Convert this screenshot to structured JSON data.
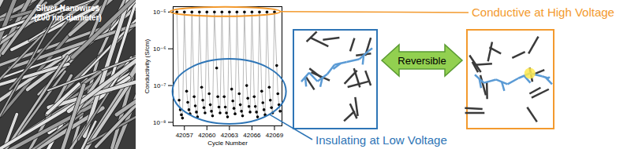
{
  "image": {
    "label_lines": [
      "Silver Nanowires",
      "(200 nm diameter)"
    ]
  },
  "chart_data": {
    "type": "line",
    "x_label": "Cycle Number",
    "y_label": "Conductivity (S/cm)",
    "log": "y",
    "grid": false,
    "color": "#000000",
    "marker": "circle",
    "line_style": "solid",
    "xlim": [
      42055.5,
      42070
    ],
    "xticks": [
      42057,
      42060,
      42063,
      42066,
      42069
    ],
    "ylim": [
      8e-09,
      1.4e-05
    ],
    "yticks": [
      {
        "value": 1e-08,
        "label": "10⁻⁸"
      },
      {
        "value": 1e-07,
        "label": "10⁻⁷"
      },
      {
        "value": 1e-06,
        "label": "10⁻⁶"
      },
      {
        "value": 1e-05,
        "label": "10⁻⁵"
      }
    ],
    "x": [
      42056,
      42056.3,
      42056.45,
      42056.6,
      42056.75,
      42057,
      42057.3,
      42057.45,
      42057.6,
      42057.75,
      42058,
      42058.3,
      42058.45,
      42058.6,
      42058.75,
      42059,
      42059.3,
      42059.45,
      42059.6,
      42059.75,
      42060,
      42060.3,
      42060.45,
      42060.6,
      42060.75,
      42061,
      42061.3,
      42061.45,
      42061.6,
      42061.75,
      42062,
      42062.3,
      42062.45,
      42062.6,
      42062.75,
      42063,
      42063.3,
      42063.45,
      42063.6,
      42063.75,
      42064,
      42064.3,
      42064.45,
      42064.6,
      42064.75,
      42065,
      42065.3,
      42065.45,
      42065.6,
      42065.75,
      42066,
      42066.3,
      42066.45,
      42066.6,
      42066.75,
      42067,
      42067.3,
      42067.45,
      42067.6,
      42067.75,
      42068,
      42068.3,
      42068.45,
      42068.6,
      42068.75,
      42069,
      42069.3,
      42069.45,
      42069.6,
      42069.75
    ],
    "values": [
      1e-05,
      4e-08,
      2.2e-08,
      1.6e-08,
      1.3e-08,
      1e-05,
      7e-08,
      3.5e-08,
      2.2e-08,
      1.7e-08,
      1e-05,
      5e-08,
      2.8e-08,
      1.9e-08,
      1.4e-08,
      1e-05,
      9e-08,
      4e-08,
      2.5e-08,
      1.8e-08,
      1e-05,
      6e-08,
      3e-08,
      2e-08,
      1.5e-08,
      1e-05,
      3e-07,
      5e-08,
      2.6e-08,
      1.8e-08,
      1e-05,
      5e-08,
      2.6e-08,
      1.8e-08,
      1.4e-08,
      1e-05,
      8e-08,
      3.8e-08,
      2.4e-08,
      1.7e-08,
      1e-05,
      6e-08,
      3e-08,
      2e-08,
      1.5e-08,
      1e-05,
      1e-07,
      4.5e-08,
      2.7e-08,
      1.9e-08,
      1e-05,
      5e-08,
      2.7e-08,
      1.9e-08,
      1.4e-08,
      1e-05,
      7e-08,
      3.4e-08,
      2.2e-08,
      1.6e-08,
      1e-05,
      9e-08,
      4e-08,
      2.5e-08,
      1.8e-08,
      1e-05,
      3.5e-07,
      6e-08,
      3e-08,
      2e-08
    ],
    "annotations": [
      {
        "text": "Conductive at High Voltage",
        "color": "#f39a2e"
      },
      {
        "text": "Insulating at Low Voltage",
        "color": "#2e75b6"
      }
    ]
  },
  "diagram": {
    "arrow_label": "Reversible"
  }
}
